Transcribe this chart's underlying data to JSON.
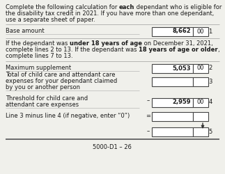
{
  "bg_color": "#f0f0eb",
  "text_color": "#1a1a1a",
  "footer": "5000-D1 – 26",
  "title_lines": [
    [
      "Complete the following calculation for ",
      "each",
      " dependant who is eligible for"
    ],
    [
      "the disability tax credit in 2021. If you have more than one dependant,"
    ],
    [
      "use a separate sheet of paper."
    ]
  ],
  "mid_lines": [
    [
      "If the dependant was ",
      "under 18 years of age",
      " on December 31, 2021,"
    ],
    [
      "complete lines 2 to 13. If the dependant was ",
      "18 years of age or older",
      ","
    ],
    [
      "complete lines 7 to 13."
    ]
  ],
  "row3_lines": [
    "Total of child care and attendant care",
    "expenses for your dependant claimed",
    "by you or another person"
  ],
  "row4_lines": [
    "Threshold for child care and",
    "attendant care expenses"
  ],
  "base_amount_main": "8,662",
  "base_amount_cents": "00",
  "max_supp_main": "5,053",
  "max_supp_cents": "00",
  "threshold_main": "2,959",
  "threshold_cents": "00"
}
